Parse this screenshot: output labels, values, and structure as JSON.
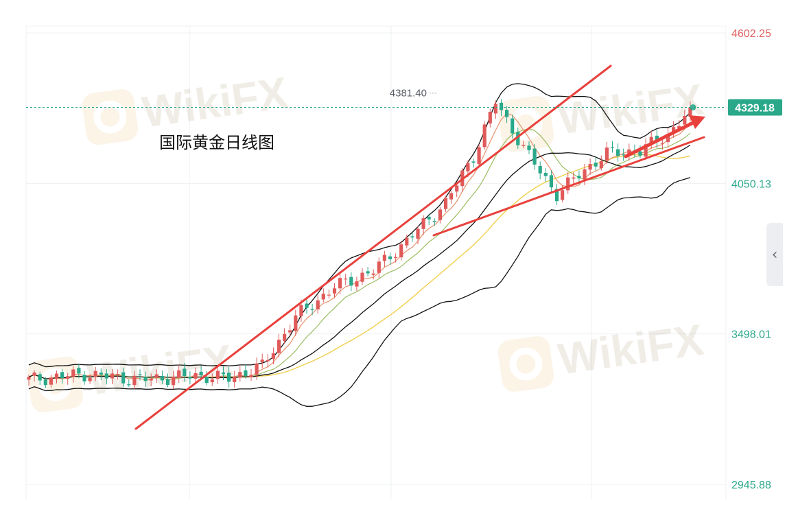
{
  "chart_data": {
    "type": "candlestick",
    "title": "国际黄金日线图",
    "ylim": [
      2945.88,
      4602.25
    ],
    "y_ticks": [
      {
        "label": "4602.25",
        "value": 4602.25,
        "color": "#e06060"
      },
      {
        "label": "4050.13",
        "value": 4050.13,
        "color": "#2aa88a"
      },
      {
        "label": "3498.01",
        "value": 3498.01,
        "color": "#2aa88a"
      },
      {
        "label": "2945.88",
        "value": 2945.88,
        "color": "#2aa88a"
      }
    ],
    "current_price": {
      "label": "4329.18",
      "value": 4329.18
    },
    "peak_annotation": {
      "label": "4381.40",
      "value": 4381.4
    },
    "grid": true,
    "colors": {
      "up": "#e05a5a",
      "down": "#2aa88a",
      "boll": "#111111",
      "ma_fast": "#e8906a",
      "ma_mid": "#9cbc62",
      "ma_slow": "#f0cf4c",
      "trendline": "#e8413c",
      "price_line": "#2aa88a"
    }
  },
  "watermark": {
    "text": "WikiFX"
  },
  "side_handle": {
    "icon": "chevron-left-icon",
    "glyph": "‹"
  }
}
